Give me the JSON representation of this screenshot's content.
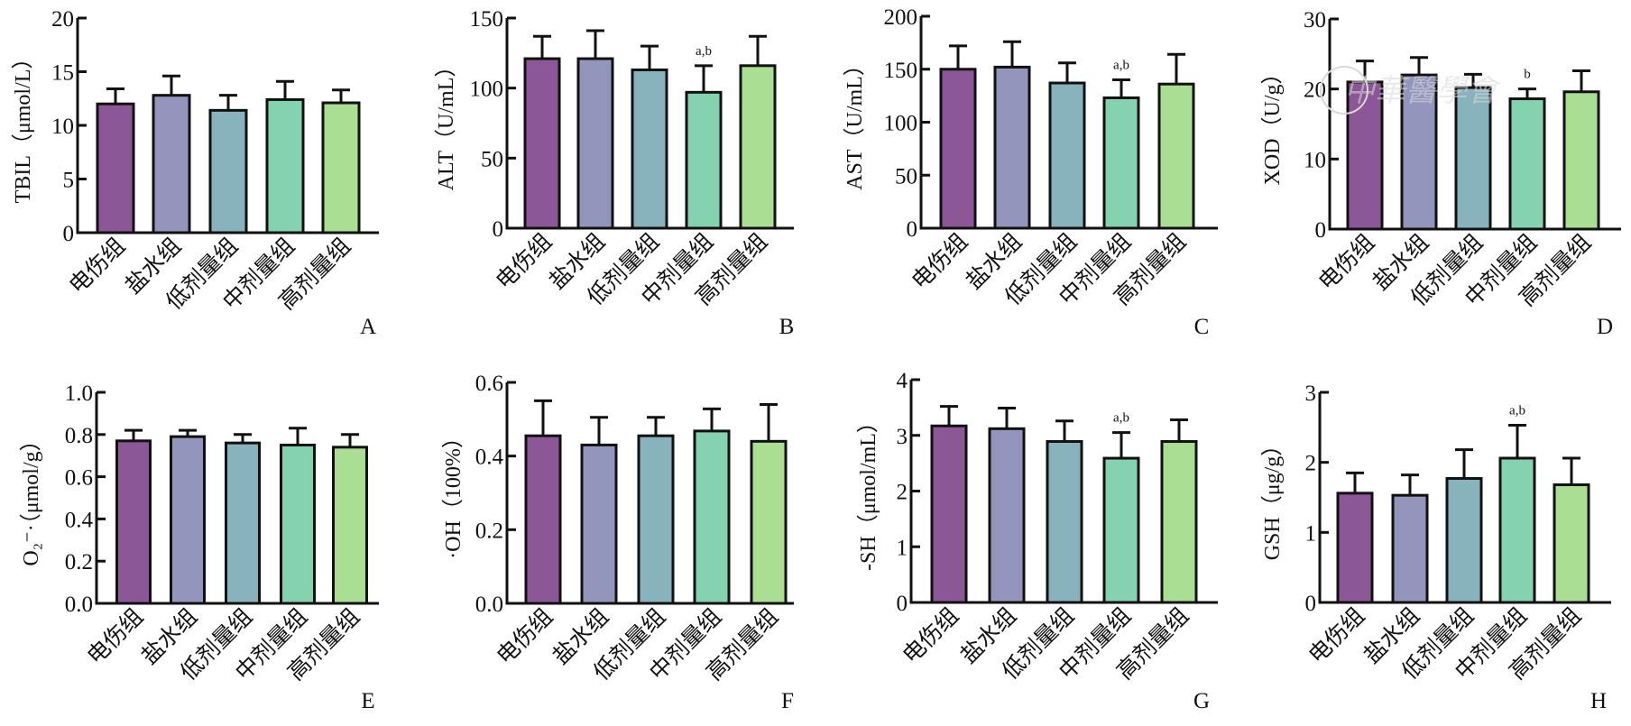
{
  "colors": [
    "#8b5796",
    "#9395bc",
    "#89b3bc",
    "#85d2b1",
    "#aadf93"
  ],
  "watermark": "中華醫學會",
  "chart_data": [
    {
      "type": "bar",
      "panel": "A",
      "ylabel": "TBIL（μmol/L）",
      "categories": [
        "电伤组",
        "盐水组",
        "低剂量组",
        "中剂量组",
        "高剂量组"
      ],
      "values": [
        12.0,
        12.8,
        11.4,
        12.4,
        12.1
      ],
      "errors": [
        1.4,
        1.8,
        1.4,
        1.7,
        1.2
      ],
      "annotations": [
        "",
        "",
        "",
        "",
        ""
      ],
      "ylim": [
        0,
        20
      ],
      "yticks": [
        0,
        5,
        10,
        15,
        20
      ],
      "ytick_labels": [
        "0",
        "5",
        "10",
        "15",
        "20"
      ]
    },
    {
      "type": "bar",
      "panel": "B",
      "ylabel": "ALT（U/mL）",
      "categories": [
        "电伤组",
        "盐水组",
        "低剂量组",
        "中剂量组",
        "高剂量组"
      ],
      "values": [
        121,
        121,
        113,
        97,
        116
      ],
      "errors": [
        16,
        20,
        17,
        19,
        21
      ],
      "annotations": [
        "",
        "",
        "",
        "a,b",
        ""
      ],
      "ylim": [
        0,
        150
      ],
      "yticks": [
        0,
        50,
        100,
        150
      ],
      "ytick_labels": [
        "0",
        "50",
        "100",
        "150"
      ]
    },
    {
      "type": "bar",
      "panel": "C",
      "ylabel": "AST（U/mL）",
      "categories": [
        "电伤组",
        "盐水组",
        "低剂量组",
        "中剂量组",
        "高剂量组"
      ],
      "values": [
        150,
        152,
        137,
        123,
        136
      ],
      "errors": [
        22,
        24,
        19,
        17,
        28
      ],
      "annotations": [
        "",
        "",
        "",
        "a,b",
        ""
      ],
      "ylim": [
        0,
        200
      ],
      "yticks": [
        0,
        50,
        100,
        150,
        200
      ],
      "ytick_labels": [
        "0",
        "50",
        "100",
        "150",
        "200"
      ]
    },
    {
      "type": "bar",
      "panel": "D",
      "ylabel": "XOD（U/g）",
      "categories": [
        "电伤组",
        "盐水组",
        "低剂量组",
        "中剂量组",
        "高剂量组"
      ],
      "values": [
        21.0,
        22.0,
        20.2,
        18.6,
        19.6
      ],
      "errors": [
        3.0,
        2.5,
        1.9,
        1.4,
        3.0
      ],
      "annotations": [
        "",
        "",
        "",
        "b",
        ""
      ],
      "ylim": [
        0,
        30
      ],
      "yticks": [
        0,
        10,
        20,
        30
      ],
      "ytick_labels": [
        "0",
        "10",
        "20",
        "30"
      ]
    },
    {
      "type": "bar",
      "panel": "E",
      "ylabel": "O₂⁻·（μmol/g）",
      "categories": [
        "电伤组",
        "盐水组",
        "低剂量组",
        "中剂量组",
        "高剂量组"
      ],
      "values": [
        0.77,
        0.79,
        0.76,
        0.75,
        0.74
      ],
      "errors": [
        0.05,
        0.03,
        0.04,
        0.08,
        0.06
      ],
      "annotations": [
        "",
        "",
        "",
        "",
        ""
      ],
      "ylim": [
        0,
        1.0
      ],
      "yticks": [
        0,
        0.2,
        0.4,
        0.6,
        0.8,
        1.0
      ],
      "ytick_labels": [
        "0.0",
        "0.2",
        "0.4",
        "0.6",
        "0.8",
        "1.0"
      ]
    },
    {
      "type": "bar",
      "panel": "F",
      "ylabel": "·OH（100%）",
      "categories": [
        "电伤组",
        "盐水组",
        "低剂量组",
        "中剂量组",
        "高剂量组"
      ],
      "values": [
        0.455,
        0.43,
        0.455,
        0.468,
        0.44
      ],
      "errors": [
        0.095,
        0.075,
        0.05,
        0.06,
        0.1
      ],
      "annotations": [
        "",
        "",
        "",
        "",
        ""
      ],
      "ylim": [
        0,
        0.6
      ],
      "yticks": [
        0,
        0.2,
        0.4,
        0.6
      ],
      "ytick_labels": [
        "0.0",
        "0.2",
        "0.4",
        "0.6"
      ]
    },
    {
      "type": "bar",
      "panel": "G",
      "ylabel": "-SH（μmol/mL）",
      "categories": [
        "电伤组",
        "盐水组",
        "低剂量组",
        "中剂量组",
        "高剂量组"
      ],
      "values": [
        3.17,
        3.12,
        2.89,
        2.59,
        2.89
      ],
      "errors": [
        0.35,
        0.37,
        0.37,
        0.46,
        0.39
      ],
      "annotations": [
        "",
        "",
        "",
        "a,b",
        ""
      ],
      "ylim": [
        0,
        4
      ],
      "yticks": [
        0,
        1,
        2,
        3,
        4
      ],
      "ytick_labels": [
        "0",
        "1",
        "2",
        "3",
        "4"
      ]
    },
    {
      "type": "bar",
      "panel": "H",
      "ylabel": "GSH（μg/g）",
      "categories": [
        "电伤组",
        "盐水组",
        "低剂量组",
        "中剂量组",
        "高剂量组"
      ],
      "values": [
        1.56,
        1.53,
        1.77,
        2.06,
        1.68
      ],
      "errors": [
        0.29,
        0.29,
        0.41,
        0.47,
        0.38
      ],
      "annotations": [
        "",
        "",
        "",
        "a,b",
        ""
      ],
      "ylim": [
        0,
        3
      ],
      "yticks": [
        0,
        1,
        2,
        3
      ],
      "ytick_labels": [
        "0",
        "1",
        "2",
        "3"
      ]
    }
  ]
}
